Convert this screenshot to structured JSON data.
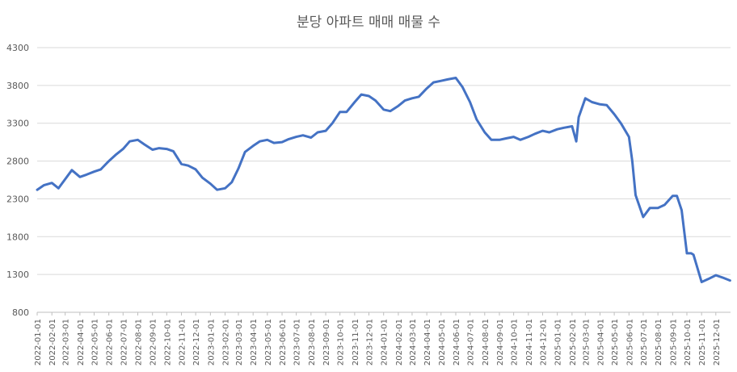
{
  "chart_data": {
    "type": "line",
    "title": "분당 아파트 매매 매물 수",
    "xlabel": "",
    "ylabel": "",
    "ylim": [
      800,
      4300
    ],
    "yticks": [
      800,
      1300,
      1800,
      2300,
      2800,
      3300,
      3800,
      4300
    ],
    "xticks": [
      "2022-01-01",
      "2022-02-01",
      "2022-03-01",
      "2022-04-01",
      "2022-05-01",
      "2022-06-01",
      "2022-07-01",
      "2022-08-01",
      "2022-09-01",
      "2022-10-01",
      "2022-11-01",
      "2022-12-01",
      "2023-01-01",
      "2023-02-01",
      "2023-03-01",
      "2023-04-01",
      "2023-05-01",
      "2023-06-01",
      "2023-07-01",
      "2023-08-01",
      "2023-09-01",
      "2023-10-01",
      "2023-11-01",
      "2023-12-01",
      "2024-01-01",
      "2024-02-01",
      "2024-03-01",
      "2024-04-01",
      "2024-05-01",
      "2024-06-01",
      "2024-07-01",
      "2024-08-01",
      "2024-09-01",
      "2024-10-01",
      "2024-11-01",
      "2024-12-01",
      "2025-01-01",
      "2025-02-01",
      "2025-03-01",
      "2025-04-01",
      "2025-05-01",
      "2025-06-01",
      "2025-07-01",
      "2025-08-01",
      "2025-09-01",
      "2025-10-01",
      "2025-11-01",
      "2025-12-01"
    ],
    "grid": true,
    "legend": "none",
    "series": [
      {
        "color": "#4472c4",
        "x": [
          "2022-01-01",
          "2022-01-15",
          "2022-02-01",
          "2022-02-15",
          "2022-03-01",
          "2022-03-15",
          "2022-04-01",
          "2022-04-15",
          "2022-05-01",
          "2022-05-15",
          "2022-06-01",
          "2022-06-15",
          "2022-07-01",
          "2022-07-15",
          "2022-08-01",
          "2022-08-15",
          "2022-09-01",
          "2022-09-15",
          "2022-10-01",
          "2022-10-15",
          "2022-11-01",
          "2022-11-15",
          "2022-12-01",
          "2022-12-15",
          "2023-01-01",
          "2023-01-15",
          "2023-02-01",
          "2023-02-15",
          "2023-03-01",
          "2023-03-15",
          "2023-04-01",
          "2023-04-15",
          "2023-05-01",
          "2023-05-15",
          "2023-06-01",
          "2023-06-15",
          "2023-07-01",
          "2023-07-15",
          "2023-08-01",
          "2023-08-15",
          "2023-09-01",
          "2023-09-15",
          "2023-10-01",
          "2023-10-15",
          "2023-11-01",
          "2023-11-15",
          "2023-12-01",
          "2023-12-15",
          "2024-01-01",
          "2024-01-15",
          "2024-02-01",
          "2024-02-15",
          "2024-03-01",
          "2024-03-15",
          "2024-04-01",
          "2024-04-15",
          "2024-05-01",
          "2024-05-15",
          "2024-06-01",
          "2024-06-15",
          "2024-07-01",
          "2024-07-15",
          "2024-08-01",
          "2024-08-15",
          "2024-09-01",
          "2024-09-15",
          "2024-10-01",
          "2024-10-15",
          "2024-11-01",
          "2024-11-15",
          "2024-12-01",
          "2024-12-15",
          "2025-01-01",
          "2025-01-15",
          "2025-02-01",
          "2025-02-10",
          "2025-02-15",
          "2025-03-01",
          "2025-03-15",
          "2025-04-01",
          "2025-04-15",
          "2025-05-01",
          "2025-05-15",
          "2025-06-01",
          "2025-06-08",
          "2025-06-15",
          "2025-07-01",
          "2025-07-15",
          "2025-08-01",
          "2025-08-15",
          "2025-09-01",
          "2025-09-10",
          "2025-09-20",
          "2025-10-01",
          "2025-10-10",
          "2025-10-15",
          "2025-11-01",
          "2025-11-15",
          "2025-12-01",
          "2025-12-15",
          "2025-12-31"
        ],
        "values": [
          2420,
          2480,
          2510,
          2440,
          2560,
          2680,
          2590,
          2620,
          2660,
          2690,
          2800,
          2880,
          2960,
          3060,
          3080,
          3020,
          2950,
          2970,
          2960,
          2930,
          2760,
          2740,
          2690,
          2580,
          2500,
          2420,
          2440,
          2520,
          2700,
          2920,
          3000,
          3060,
          3080,
          3040,
          3050,
          3090,
          3120,
          3140,
          3110,
          3180,
          3200,
          3300,
          3450,
          3450,
          3580,
          3680,
          3660,
          3600,
          3480,
          3460,
          3530,
          3600,
          3630,
          3650,
          3760,
          3840,
          3860,
          3880,
          3900,
          3780,
          3580,
          3350,
          3180,
          3080,
          3080,
          3100,
          3120,
          3080,
          3120,
          3160,
          3200,
          3180,
          3220,
          3240,
          3260,
          3060,
          3380,
          3630,
          3580,
          3550,
          3540,
          3420,
          3300,
          3120,
          2800,
          2350,
          2060,
          2180,
          2180,
          2220,
          2340,
          2340,
          2150,
          1580,
          1580,
          1560,
          1200,
          1240,
          1290,
          1260,
          1220
        ]
      }
    ]
  }
}
